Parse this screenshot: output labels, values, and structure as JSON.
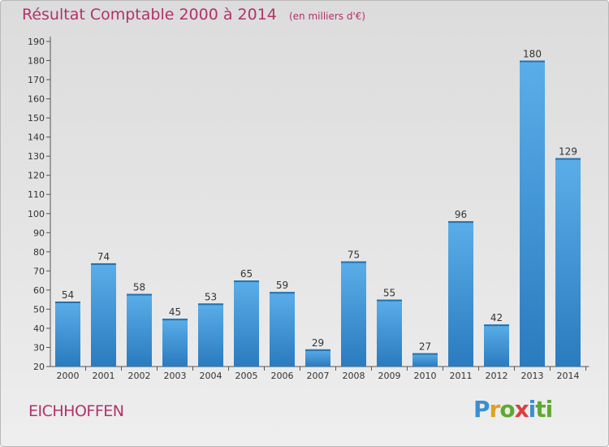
{
  "chart_data": {
    "type": "bar",
    "title": "Résultat Comptable 2000 à 2014",
    "unit_note": "(en milliers d'€)",
    "categories": [
      "2000",
      "2001",
      "2002",
      "2003",
      "2004",
      "2005",
      "2006",
      "2007",
      "2008",
      "2009",
      "2010",
      "2011",
      "2012",
      "2013",
      "2014"
    ],
    "values": [
      54,
      74,
      58,
      45,
      53,
      65,
      59,
      29,
      75,
      55,
      27,
      96,
      42,
      180,
      129
    ],
    "ylim": [
      20,
      190
    ],
    "yticks": [
      20,
      30,
      40,
      50,
      60,
      70,
      80,
      90,
      100,
      110,
      120,
      130,
      140,
      150,
      160,
      170,
      180,
      190
    ],
    "grid": false,
    "bar_color": "#3f97d9",
    "bar_color_dark": "#2a7bbf"
  },
  "town": "EICHHOFFEN",
  "brand": {
    "letters": [
      "P",
      "r",
      "o",
      "x",
      "i",
      "t",
      "i"
    ]
  },
  "colors": {
    "title": "#b0336a",
    "axis": "#333333"
  }
}
